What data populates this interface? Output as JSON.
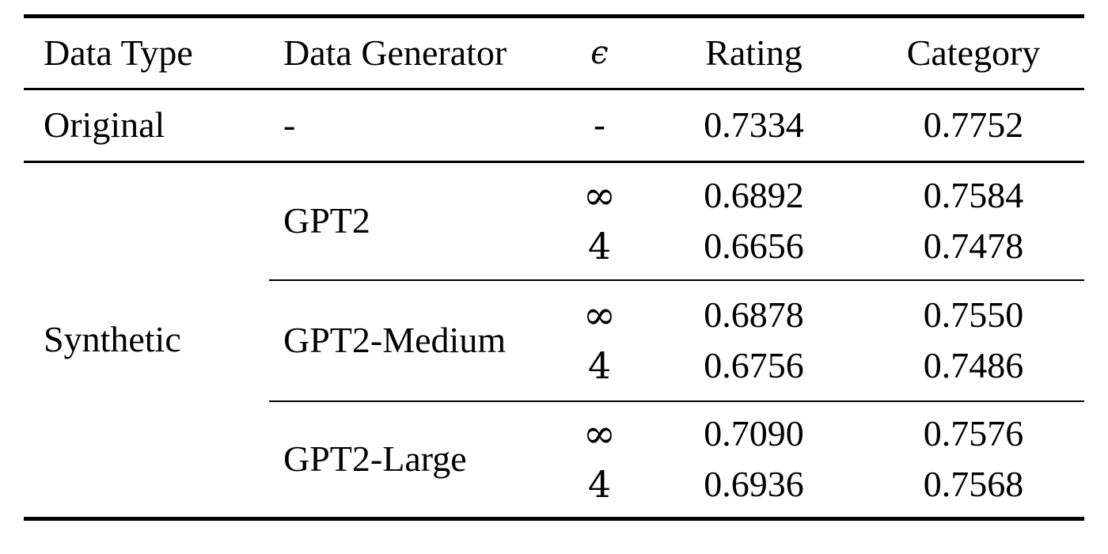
{
  "page": {
    "background": "#ffffff",
    "text_color": "#000000",
    "rule_color": "#000000"
  },
  "table": {
    "columns": [
      "Data Type",
      "Data Generator",
      "ϵ",
      "Rating",
      "Category"
    ],
    "original": {
      "data_type": "Original",
      "generator": "-",
      "epsilon": "-",
      "rating": "0.7334",
      "category": "0.7752"
    },
    "synthetic_label": "Synthetic",
    "groups": [
      {
        "generator": "GPT2",
        "rows": [
          {
            "epsilon": "∞",
            "rating": "0.6892",
            "category": "0.7584"
          },
          {
            "epsilon": "4",
            "rating": "0.6656",
            "category": "0.7478"
          }
        ]
      },
      {
        "generator": "GPT2-Medium",
        "rows": [
          {
            "epsilon": "∞",
            "rating": "0.6878",
            "category": "0.7550"
          },
          {
            "epsilon": "4",
            "rating": "0.6756",
            "category": "0.7486"
          }
        ]
      },
      {
        "generator": "GPT2-Large",
        "rows": [
          {
            "epsilon": "∞",
            "rating": "0.7090",
            "category": "0.7576"
          },
          {
            "epsilon": "4",
            "rating": "0.6936",
            "category": "0.7568"
          }
        ]
      }
    ]
  }
}
